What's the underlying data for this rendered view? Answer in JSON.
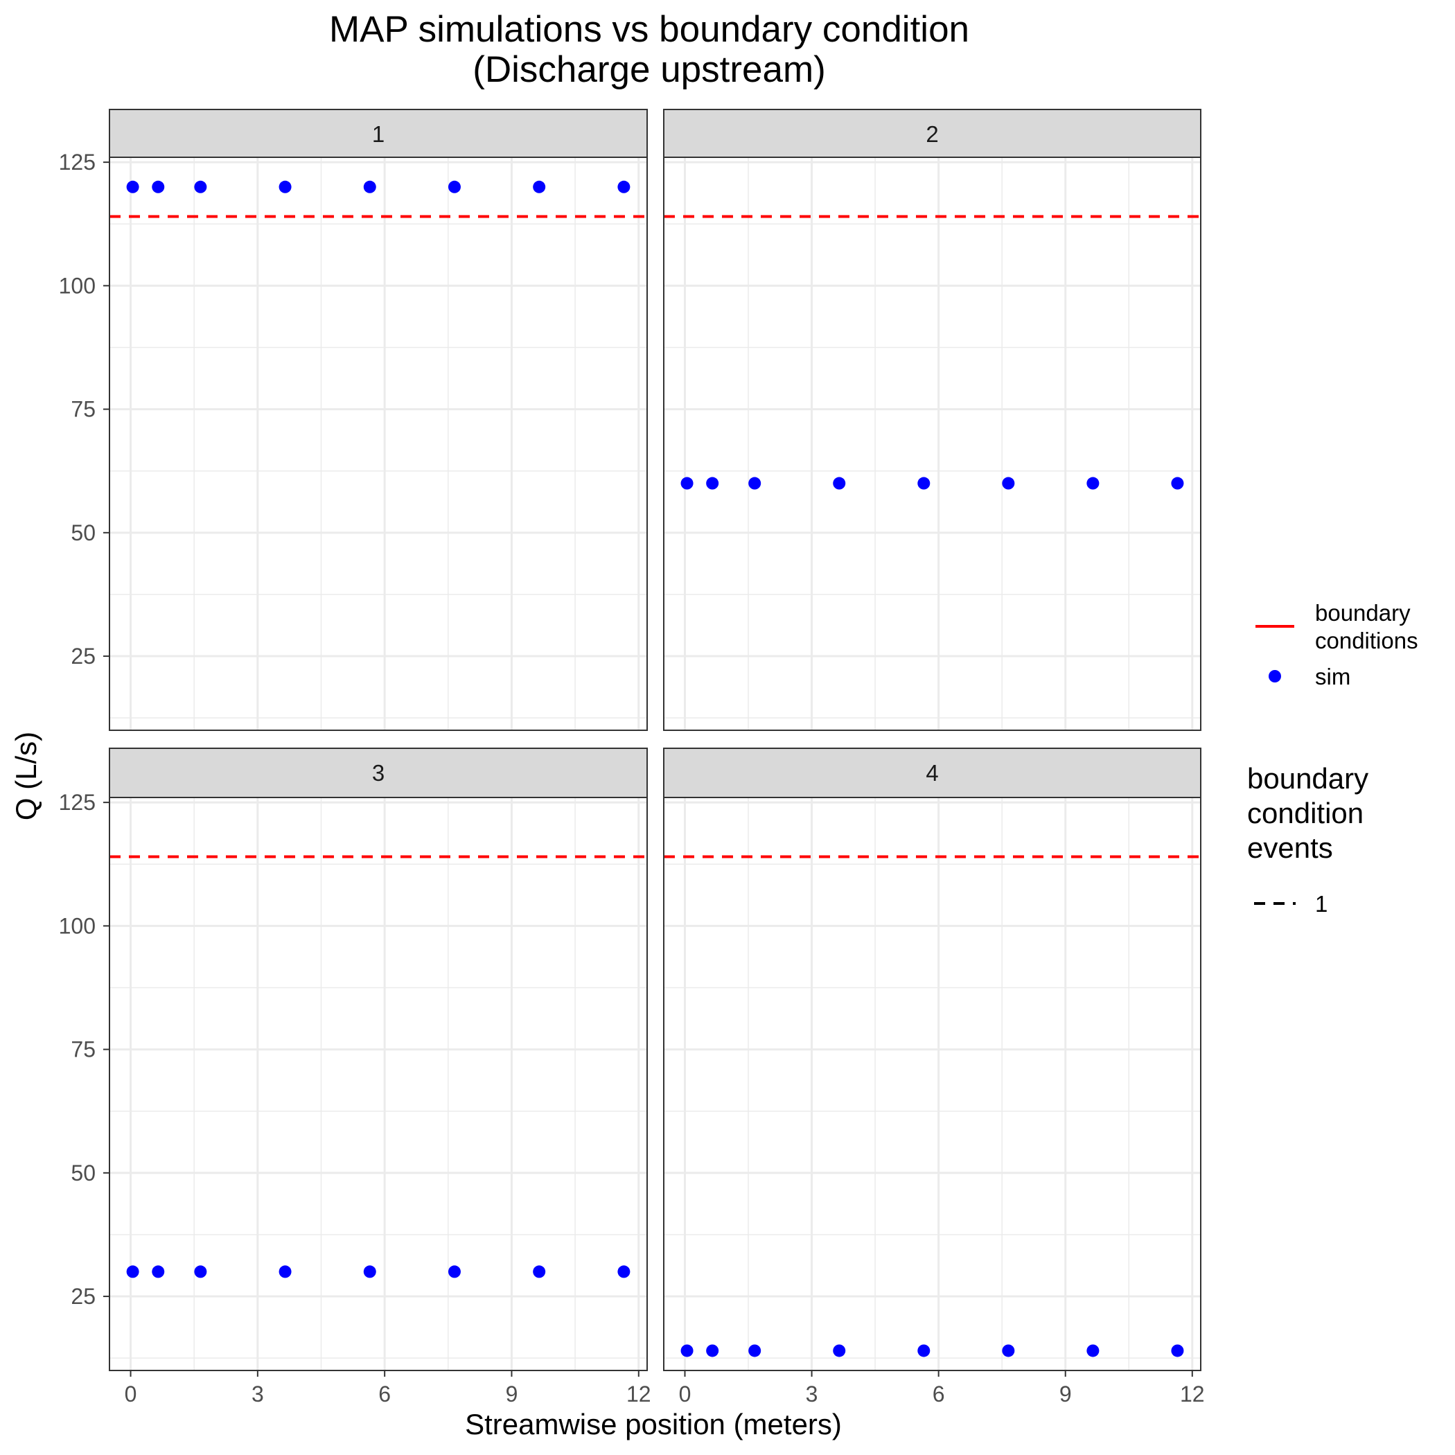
{
  "chart_data": {
    "type": "scatter",
    "title_line1": "MAP simulations vs boundary condition",
    "title_line2": "(Discharge upstream)",
    "xlabel": "Streamwise position (meters)",
    "ylabel": "Q (L/s)",
    "xlim": [
      -0.5,
      12.2
    ],
    "ylim": [
      10,
      126
    ],
    "x_ticks": [
      0,
      3,
      6,
      9,
      12
    ],
    "y_ticks": [
      25,
      50,
      75,
      100,
      125
    ],
    "grid": true,
    "x": [
      0.05,
      0.65,
      1.65,
      3.65,
      5.65,
      7.65,
      9.65,
      11.65
    ],
    "panels": [
      {
        "label": "1",
        "sim": [
          120,
          120,
          120,
          120,
          120,
          120,
          120,
          120
        ],
        "boundary": 114
      },
      {
        "label": "2",
        "sim": [
          60,
          60,
          60,
          60,
          60,
          60,
          60,
          60
        ],
        "boundary": 114
      },
      {
        "label": "3",
        "sim": [
          30,
          30,
          30,
          30,
          30,
          30,
          30,
          30
        ],
        "boundary": 114
      },
      {
        "label": "4",
        "sim": [
          14,
          14,
          14,
          14,
          14,
          14,
          14,
          14
        ],
        "boundary": 114
      }
    ],
    "legend_placement": "right",
    "legend_colour": {
      "items": [
        {
          "label_line1": "boundary",
          "label_line2": "conditions",
          "kind": "line",
          "color": "#ff0000"
        },
        {
          "label_line1": "sim",
          "label_line2": "",
          "kind": "point",
          "color": "#0000ff"
        }
      ]
    },
    "legend_linetype": {
      "title_line1": "boundary",
      "title_line2": "condition",
      "title_line3": "events",
      "items": [
        {
          "label": "1",
          "kind": "dashed",
          "color": "#000000"
        }
      ]
    },
    "colors": {
      "sim": "#0000ff",
      "boundary": "#ff0000",
      "strip": "#d9d9d9",
      "grid": "#ebebeb"
    }
  }
}
